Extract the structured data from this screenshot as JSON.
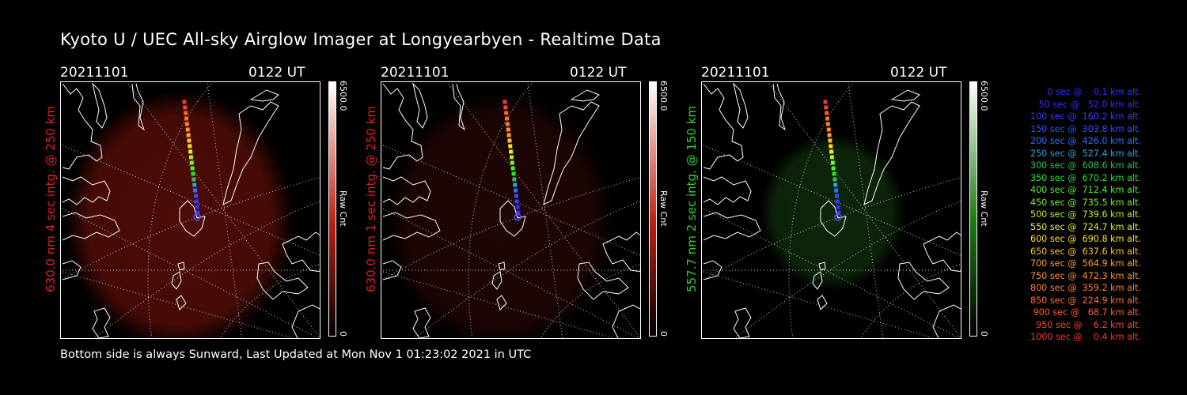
{
  "title": "Kyoto U / UEC All-sky Airglow Imager at Longyearbyen - Realtime Data",
  "footer": "Bottom side is always Sunward, Last Updated at Mon Nov  1 01:23:02 2021 in UTC",
  "panels": [
    {
      "date": "20211101",
      "time": "0122 UT",
      "ylabel": "630.0 nm 4 sec intg. @ 250 km",
      "label_color": "#e02020",
      "cbar_max": "6500.0",
      "cbar_min": "0",
      "cbar_unit": "Raw Cnt",
      "cbar_color": "#c02010",
      "glow": "#5a0e08",
      "glow_opacity": 0.85
    },
    {
      "date": "20211101",
      "time": "0122 UT",
      "ylabel": "630.0 nm 1 sec intg. @ 250 km",
      "label_color": "#e02020",
      "cbar_max": "6500.0",
      "cbar_min": "0",
      "cbar_unit": "Raw Cnt",
      "cbar_color": "#c02010",
      "glow": "#2a0806",
      "glow_opacity": 0.7
    },
    {
      "date": "20211101",
      "time": "0122 UT",
      "ylabel": "557.7 nm 2 sec intg. @ 150 km",
      "label_color": "#30d030",
      "cbar_max": "6500.0",
      "cbar_min": "0",
      "cbar_unit": "Raw Cnt",
      "cbar_color": "#1a7a10",
      "glow": "#10300c",
      "glow_opacity": 0.8
    }
  ],
  "legend": [
    {
      "text": "   0 sec @    0.1 km alt.",
      "color": "#3030ff"
    },
    {
      "text": "  50 sec @   52.0 km alt.",
      "color": "#3030ff"
    },
    {
      "text": " 100 sec @  160.2 km alt.",
      "color": "#3040ff"
    },
    {
      "text": " 150 sec @  303.8 km alt.",
      "color": "#3050ff"
    },
    {
      "text": " 200 sec @  426.0 km alt.",
      "color": "#3070ff"
    },
    {
      "text": " 250 sec @  527.4 km alt.",
      "color": "#30a0e0"
    },
    {
      "text": " 300 sec @  608.6 km alt.",
      "color": "#30c050"
    },
    {
      "text": " 350 sec @  670.2 km alt.",
      "color": "#30e030"
    },
    {
      "text": " 400 sec @  712.4 km alt.",
      "color": "#50f030"
    },
    {
      "text": " 450 sec @  735.5 km alt.",
      "color": "#80f030"
    },
    {
      "text": " 500 sec @  739.6 km alt.",
      "color": "#b0f030"
    },
    {
      "text": " 550 sec @  724.7 km alt.",
      "color": "#e0f030"
    },
    {
      "text": " 600 sec @  690.8 km alt.",
      "color": "#ffe030"
    },
    {
      "text": " 650 sec @  637.6 km alt.",
      "color": "#ffc030"
    },
    {
      "text": " 700 sec @  564.9 km alt.",
      "color": "#ffa030"
    },
    {
      "text": " 750 sec @  472.3 km alt.",
      "color": "#ff9030"
    },
    {
      "text": " 800 sec @  359.2 km alt.",
      "color": "#ff8030"
    },
    {
      "text": " 850 sec @  224.9 km alt.",
      "color": "#ff7030"
    },
    {
      "text": " 900 sec @   68.7 km alt.",
      "color": "#ff6030"
    },
    {
      "text": " 950 sec @    6.2 km alt.",
      "color": "#ff4030"
    },
    {
      "text": "1000 sec @    0.4 km alt.",
      "color": "#ff3030"
    }
  ]
}
